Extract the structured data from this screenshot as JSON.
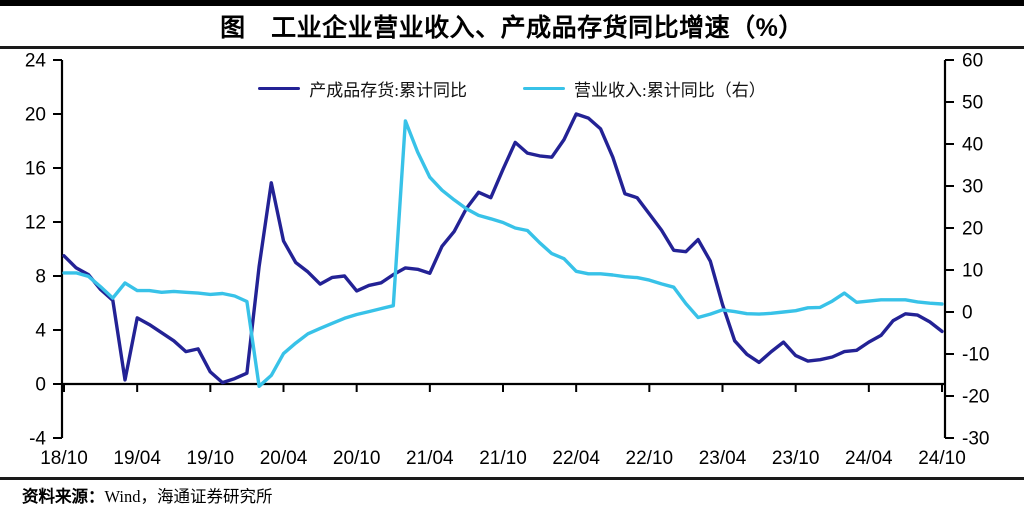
{
  "title": "图　工业企业营业收入、产成品存货同比增速（%）",
  "source": {
    "prefix": "资料来源：",
    "text": "Wind，海通证券研究所"
  },
  "colors": {
    "inventory_line": "#232295",
    "revenue_line": "#38C2E8",
    "axis": "#000000"
  },
  "chart_data": {
    "type": "line",
    "title": "图　工业企业营业收入、产成品存货同比增速（%）",
    "x_frequency": "monthly",
    "x_start": "2018/10",
    "x_end": "2024/10",
    "x_tick_labels": [
      "18/10",
      "19/04",
      "19/10",
      "20/04",
      "20/10",
      "21/04",
      "21/10",
      "22/04",
      "22/10",
      "23/04",
      "23/10",
      "24/04",
      "24/10"
    ],
    "left_axis": {
      "ticks": [
        24,
        20,
        16,
        12,
        8,
        4,
        0,
        -4
      ],
      "range": [
        -4,
        24
      ]
    },
    "right_axis": {
      "ticks": [
        60,
        50,
        40,
        30,
        20,
        10,
        0,
        -10,
        -20,
        -30
      ],
      "range": [
        -30,
        60
      ]
    },
    "grid": false,
    "legend_position": "top",
    "series": [
      {
        "name": "产成品存货:累计同比",
        "axis": "left",
        "color": "#232295",
        "values": [
          9.5,
          8.6,
          8.1,
          7.0,
          6.2,
          0.3,
          4.9,
          4.4,
          3.8,
          3.2,
          2.4,
          2.6,
          0.9,
          0.1,
          0.4,
          0.8,
          8.7,
          14.9,
          10.6,
          9.0,
          8.3,
          7.4,
          7.9,
          8.0,
          6.9,
          7.3,
          7.5,
          8.1,
          8.6,
          8.5,
          8.2,
          10.2,
          11.3,
          13.0,
          14.2,
          13.8,
          15.9,
          17.9,
          17.1,
          16.9,
          16.8,
          18.1,
          20.0,
          19.7,
          18.9,
          16.8,
          14.1,
          13.8,
          12.6,
          11.4,
          9.9,
          9.8,
          10.7,
          9.1,
          5.9,
          3.2,
          2.2,
          1.6,
          2.4,
          3.1,
          2.1,
          1.7,
          1.8,
          2.0,
          2.4,
          2.5,
          3.1,
          3.6,
          4.7,
          5.2,
          5.1,
          4.6,
          3.9
        ]
      },
      {
        "name": "营业收入:累计同比（右）",
        "axis": "right",
        "color": "#38C2E8",
        "values": [
          9.3,
          9.3,
          8.5,
          6.0,
          3.3,
          6.9,
          5.1,
          5.1,
          4.7,
          4.9,
          4.7,
          4.5,
          4.2,
          4.4,
          3.8,
          2.5,
          -17.7,
          -15.1,
          -9.9,
          -7.4,
          -5.2,
          -3.9,
          -2.7,
          -1.5,
          -0.6,
          0.1,
          0.8,
          1.5,
          45.5,
          38.1,
          32.1,
          29.0,
          26.7,
          24.6,
          23.0,
          22.2,
          21.3,
          20.0,
          19.4,
          16.5,
          13.9,
          12.7,
          9.7,
          9.1,
          9.1,
          8.8,
          8.4,
          8.2,
          7.6,
          6.7,
          5.9,
          2.0,
          -1.3,
          -0.5,
          0.5,
          0.1,
          -0.4,
          -0.5,
          -0.3,
          0.0,
          0.3,
          1.0,
          1.1,
          2.6,
          4.5,
          2.3,
          2.6,
          2.9,
          2.9,
          2.9,
          2.4,
          2.1,
          1.9
        ]
      }
    ]
  }
}
